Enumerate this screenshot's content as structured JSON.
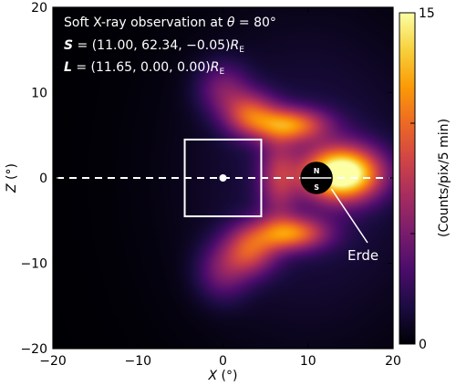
{
  "chart_data": {
    "type": "heatmap",
    "annotation_lines": [
      "Soft X-ray observation at θ = 80°",
      "S = (11.00, 62.34, −0.05)R",
      "L = (11.65, 0.00, 0.00)R"
    ],
    "annotation_parts": {
      "title_text": "Soft X-ray observation at ",
      "title_theta": "θ",
      "title_value": " = 80°",
      "s_symbol": "S",
      "s_value": " = (11.00, 62.34, −0.05)",
      "l_symbol": "L",
      "l_value": " = (11.65, 0.00, 0.00)",
      "unit_base": "R",
      "unit_sub": "E"
    },
    "xlabel": {
      "var": "X",
      "unit": " (°)"
    },
    "ylabel": {
      "var": "Z",
      "unit": " (°)"
    },
    "xlim": [
      -20,
      20
    ],
    "ylim": [
      -20,
      20
    ],
    "xticks": [
      -20,
      -10,
      0,
      10,
      20
    ],
    "yticks": [
      -20,
      -10,
      0,
      10,
      20
    ],
    "xtick_labels": [
      "−20",
      "−10",
      "0",
      "10",
      "20"
    ],
    "ytick_labels": [
      "−20",
      "−10",
      "0",
      "10",
      "20"
    ],
    "colorbar": {
      "label": "(Counts/pix/5 min)",
      "min": 0,
      "max": 15,
      "tick_values": [
        0,
        5,
        10,
        15
      ],
      "labeled_ticks": [
        "0",
        "15"
      ],
      "colormap": [
        "#000004",
        "#1b0c41",
        "#4a0c6b",
        "#781c6d",
        "#a52c60",
        "#cf4446",
        "#ed6925",
        "#fb9b06",
        "#f7d13d",
        "#fcffa4"
      ]
    },
    "earth": {
      "x": 11,
      "z": 0,
      "radius_deg": 1.85,
      "north_label": "N",
      "south_label": "S",
      "callout": "Erde"
    },
    "reference_point": {
      "x": 0,
      "z": 0
    },
    "box": {
      "x": [
        -4.5,
        4.5
      ],
      "z": [
        -4.5,
        4.5
      ]
    },
    "dashed_line_z": 0,
    "emission": [
      {
        "x": 14.0,
        "z": 0.5,
        "sx": 3.2,
        "sz": 2.2,
        "value": 16
      },
      {
        "x": 8.0,
        "z": 6.2,
        "sx": 3.0,
        "sz": 1.4,
        "value": 9
      },
      {
        "x": 8.0,
        "z": -6.5,
        "sx": 3.0,
        "sz": 1.4,
        "value": 9
      },
      {
        "x": 3.2,
        "z": 7.5,
        "sx": 2.2,
        "sz": 1.8,
        "value": 7
      },
      {
        "x": 3.2,
        "z": -8.5,
        "sx": 2.2,
        "sz": 2.0,
        "value": 7
      },
      {
        "x": 6.5,
        "z": 0.0,
        "sx": 1.6,
        "sz": 3.5,
        "value": 5
      },
      {
        "x": 0.0,
        "z": 10.5,
        "sx": 2.2,
        "sz": 2.2,
        "value": 4
      },
      {
        "x": 0.0,
        "z": -11.0,
        "sx": 2.2,
        "sz": 2.4,
        "value": 4
      },
      {
        "x": 10.0,
        "z": 0.0,
        "sx": 10.0,
        "sz": 13.0,
        "value": 2
      }
    ]
  }
}
